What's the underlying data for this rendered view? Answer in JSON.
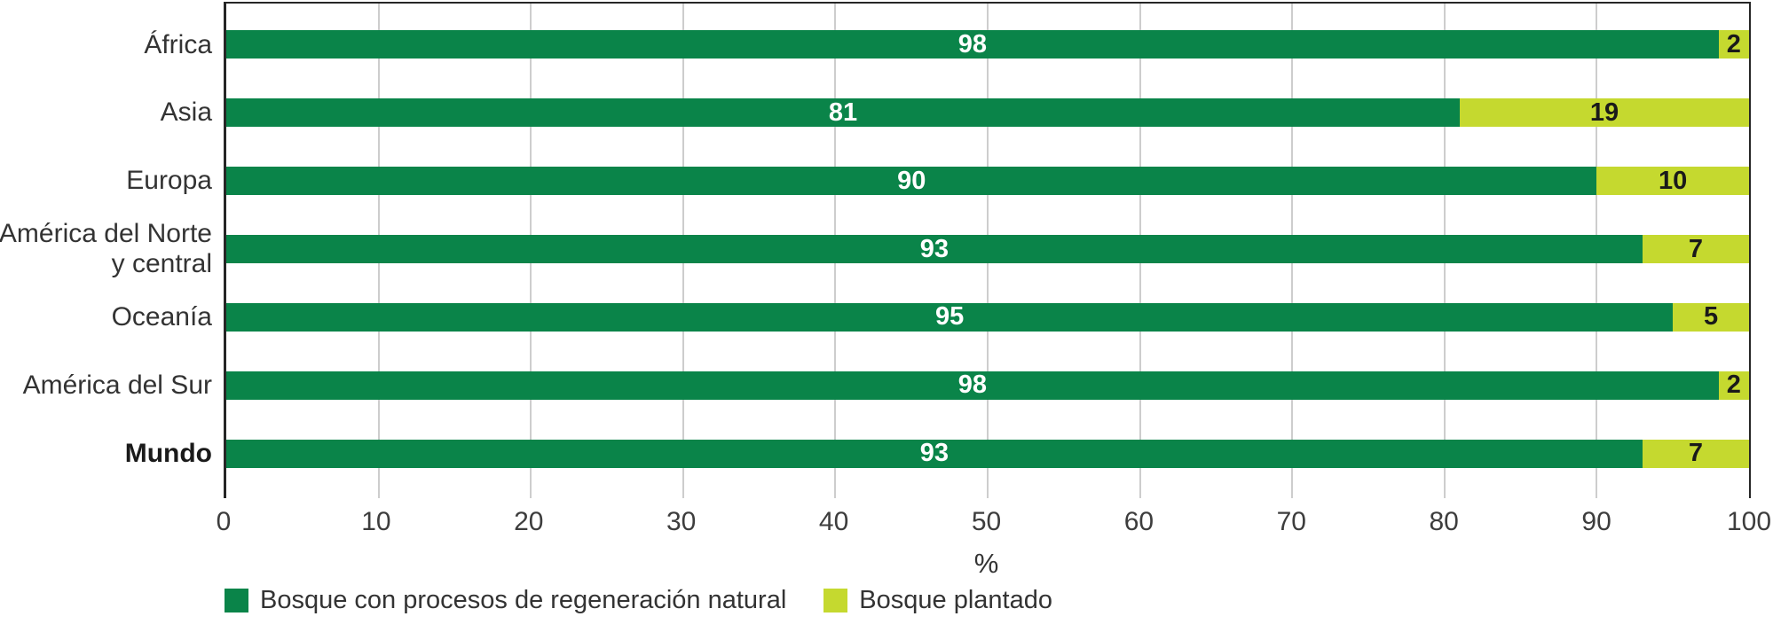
{
  "chart_data": {
    "type": "bar",
    "orientation": "horizontal",
    "stacked": true,
    "title": "",
    "categories": [
      "África",
      "Asia",
      "Europa",
      "América del Norte y central",
      "Oceanía",
      "América del Sur",
      "Mundo"
    ],
    "category_lines": [
      [
        "África"
      ],
      [
        "Asia"
      ],
      [
        "Europa"
      ],
      [
        "América del Norte",
        "y central"
      ],
      [
        "Oceanía"
      ],
      [
        "América del Sur"
      ],
      [
        "Mundo"
      ]
    ],
    "bold_categories": [
      "Mundo"
    ],
    "series": [
      {
        "key": "natural",
        "name": "Bosque con procesos de regeneración natural",
        "color": "#0a8449",
        "value_text_color": "#ffffff",
        "values": [
          98,
          81,
          90,
          93,
          95,
          98,
          93
        ]
      },
      {
        "key": "planted",
        "name": "Bosque plantado",
        "color": "#c5d92f",
        "value_text_color": "#1a1a1a",
        "values": [
          2,
          19,
          10,
          7,
          5,
          2,
          7
        ]
      }
    ],
    "xlabel": "%",
    "xlim": [
      0,
      100
    ],
    "xticks": [
      0,
      10,
      20,
      30,
      40,
      50,
      60,
      70,
      80,
      90,
      100
    ],
    "grid": true,
    "legend_position": "bottom"
  },
  "colors": {
    "background": "#ffffff",
    "axis_frame": "#262626",
    "gridline": "#cdcdcd",
    "category_text": "#333333",
    "tick_text": "#3d3d3d"
  }
}
